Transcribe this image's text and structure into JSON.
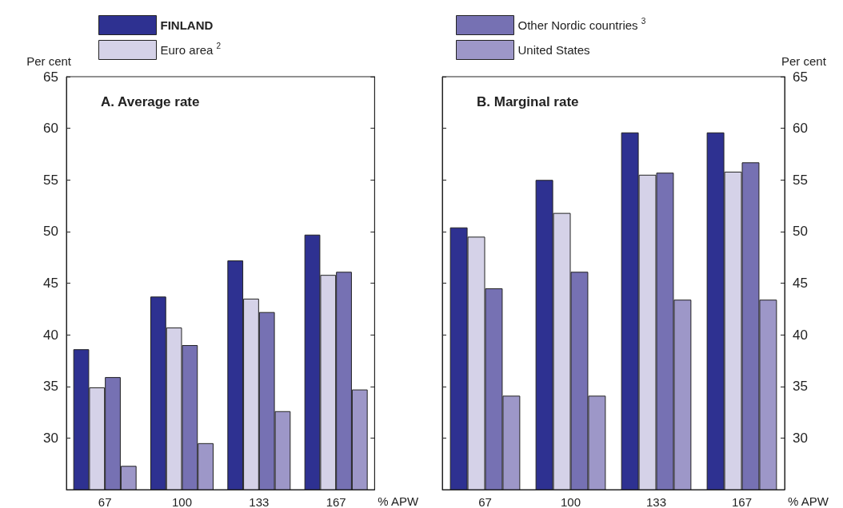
{
  "chart_data": [
    {
      "type": "bar",
      "title": "A. Average rate",
      "ylabel": "Per cent",
      "xlabel": "% APW",
      "categories": [
        "67",
        "100",
        "133",
        "167"
      ],
      "ylim": [
        25,
        65
      ],
      "yticks": [
        30,
        35,
        40,
        45,
        50,
        55,
        60,
        65
      ],
      "grid": false,
      "legend": "top",
      "series": [
        {
          "name": "FINLAND",
          "color": "#2e3191",
          "values": [
            38.6,
            43.7,
            47.2,
            49.7
          ]
        },
        {
          "name": "Euro area $^{2}$",
          "color": "#d5d2e8",
          "values": [
            34.9,
            40.7,
            43.5,
            45.8
          ]
        },
        {
          "color": "#7671b3",
          "values": [
            35.9,
            39.0,
            42.2,
            46.1
          ]
        },
        {
          "color": "#9d97c8",
          "values": [
            27.3,
            29.5,
            32.6,
            34.7
          ]
        }
      ]
    },
    {
      "type": "bar",
      "title": "B. Marginal rate",
      "y2label": "Per cent",
      "xlabel": "% APW",
      "categories": [
        "67",
        "100",
        "133",
        "167"
      ],
      "y2lim": [
        25,
        65
      ],
      "y2ticks": [
        30,
        35,
        40,
        45,
        50,
        55,
        60,
        65
      ],
      "grid": false,
      "legend": "top",
      "series": [
        {
          "color": "#2e3191",
          "axis": "y2",
          "values": [
            50.4,
            55.0,
            59.6,
            59.6
          ]
        },
        {
          "color": "#d5d2e8",
          "axis": "y2",
          "values": [
            49.5,
            51.8,
            55.5,
            55.8
          ]
        },
        {
          "name": "Other Nordic countries $^{3}$",
          "color": "#7671b3",
          "axis": "y2",
          "values": [
            44.5,
            46.1,
            55.7,
            56.7
          ]
        },
        {
          "name": "United States",
          "color": "#9d97c8",
          "axis": "y2",
          "values": [
            34.1,
            34.1,
            43.4,
            43.4
          ]
        }
      ]
    }
  ]
}
